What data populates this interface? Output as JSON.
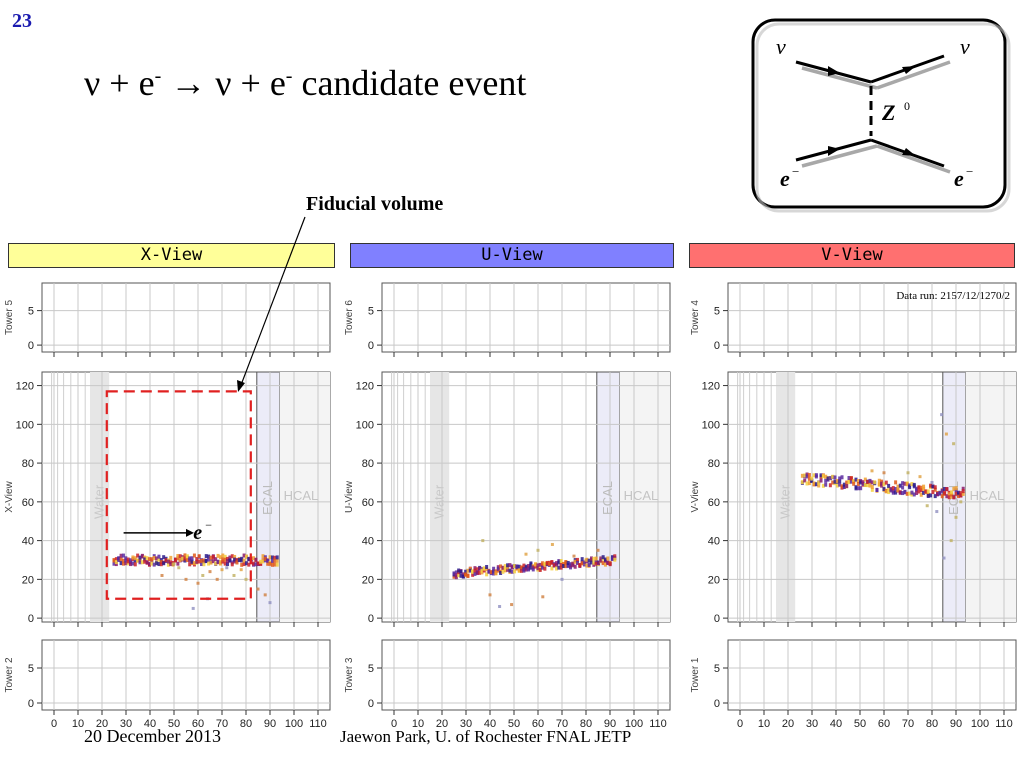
{
  "slide_number": "23",
  "title": {
    "nu1": "ν",
    "plus1": " + e",
    "minus1": "-",
    "arrow": " → ν + e",
    "minus2": "-",
    "rest": " candidate event"
  },
  "fiducial_label": "Fiducial volume",
  "electron_label": "e",
  "feynman": {
    "nu_in": "ν",
    "nu_out": "ν",
    "boson": "Z",
    "boson_sup": "0",
    "e_in": "e",
    "e_out": "e",
    "e_sup": "−"
  },
  "views": [
    {
      "label": "X-View",
      "color": "#ffff99",
      "top_tower": "Tower 5",
      "mid_label": "X-View",
      "bottom_tower": "Tower 2"
    },
    {
      "label": "U-View",
      "color": "#8080ff",
      "top_tower": "Tower 6",
      "mid_label": "U-View",
      "bottom_tower": "Tower 3"
    },
    {
      "label": "V-View",
      "color": "#ff7070",
      "top_tower": "Tower 4",
      "mid_label": "V-View",
      "bottom_tower": "Tower 1"
    }
  ],
  "data_run": "Data run: 2157/12/1270/2",
  "region_labels": {
    "water": "Water",
    "ecal": "ECAL",
    "hcal": "HCAL"
  },
  "footer": {
    "date": "20 December 2013",
    "author": "Jaewon Park, U. of Rochester  FNAL JETP"
  },
  "chart_data": [
    {
      "type": "scatter",
      "title": "X-View",
      "x_ticks": [
        0,
        10,
        20,
        30,
        40,
        50,
        60,
        70,
        80,
        90,
        100,
        110
      ],
      "x_tick_labels": [
        "0",
        "10",
        "20",
        "30",
        "40",
        "50",
        "60",
        "70",
        "80",
        "90",
        "100",
        "110"
      ],
      "y_ticks_main": [
        0,
        20,
        40,
        60,
        80,
        100,
        120
      ],
      "y_ticks_side": [
        0,
        5
      ],
      "xlim": [
        -5,
        115
      ],
      "ylim_main": [
        -2,
        127
      ],
      "ylim_side": [
        -1,
        9
      ],
      "water_region": [
        15,
        23
      ],
      "ecal_region": [
        84.5,
        94
      ],
      "hcal_region": [
        94,
        115
      ],
      "track": {
        "x_start": 25,
        "x_end": 93,
        "y_start": 30,
        "y_end": 30,
        "spread": 2.5
      },
      "fiducial_box": {
        "x": [
          22,
          82
        ],
        "y": [
          10,
          117
        ]
      },
      "scatter_hits": [
        [
          55,
          20
        ],
        [
          60,
          18
        ],
        [
          65,
          24
        ],
        [
          70,
          25
        ],
        [
          75,
          22
        ],
        [
          80,
          20
        ],
        [
          85,
          15
        ],
        [
          90,
          8
        ],
        [
          45,
          22
        ],
        [
          52,
          26
        ],
        [
          62,
          22
        ],
        [
          68,
          20
        ],
        [
          78,
          25
        ],
        [
          88,
          12
        ],
        [
          58,
          5
        ],
        [
          64,
          10
        ],
        [
          50,
          28
        ],
        [
          72,
          26
        ]
      ]
    },
    {
      "type": "scatter",
      "title": "U-View",
      "x_ticks": [
        0,
        10,
        20,
        30,
        40,
        50,
        60,
        70,
        80,
        90,
        100,
        110
      ],
      "x_tick_labels": [
        "0",
        "10",
        "20",
        "30",
        "40",
        "50",
        "60",
        "70",
        "80",
        "90",
        "100",
        "110"
      ],
      "y_ticks_main": [
        0,
        20,
        40,
        60,
        80,
        100,
        120
      ],
      "y_ticks_side": [
        0,
        5
      ],
      "xlim": [
        -5,
        115
      ],
      "ylim_main": [
        -2,
        127
      ],
      "ylim_side": [
        -1,
        9
      ],
      "water_region": [
        15,
        23
      ],
      "ecal_region": [
        84.5,
        94
      ],
      "hcal_region": [
        94,
        115
      ],
      "track": {
        "x_start": 25,
        "x_end": 92,
        "y_start": 23,
        "y_end": 30,
        "spread": 2.0
      },
      "scatter_hits": [
        [
          37,
          40
        ],
        [
          44,
          6
        ],
        [
          49,
          7
        ],
        [
          60,
          35
        ],
        [
          62,
          11
        ],
        [
          70,
          20
        ],
        [
          75,
          32
        ],
        [
          80,
          30
        ],
        [
          66,
          38
        ],
        [
          40,
          12
        ],
        [
          55,
          33
        ],
        [
          85,
          35
        ]
      ]
    },
    {
      "type": "scatter",
      "title": "V-View",
      "x_ticks": [
        0,
        10,
        20,
        30,
        40,
        50,
        60,
        70,
        80,
        90,
        100,
        110
      ],
      "x_tick_labels": [
        "0",
        "10",
        "20",
        "30",
        "40",
        "50",
        "60",
        "70",
        "80",
        "90",
        "100",
        "110"
      ],
      "y_ticks_main": [
        0,
        20,
        40,
        60,
        80,
        100,
        120
      ],
      "y_ticks_side": [
        0,
        5
      ],
      "xlim": [
        -5,
        115
      ],
      "ylim_main": [
        -2,
        127
      ],
      "ylim_side": [
        -1,
        9
      ],
      "water_region": [
        15,
        23
      ],
      "ecal_region": [
        84.5,
        94
      ],
      "hcal_region": [
        94,
        115
      ],
      "track": {
        "x_start": 26,
        "x_end": 93,
        "y_start": 72,
        "y_end": 64,
        "spread": 2.8
      },
      "scatter_hits": [
        [
          84,
          105
        ],
        [
          89,
          90
        ],
        [
          86,
          95
        ],
        [
          78,
          58
        ],
        [
          82,
          55
        ],
        [
          88,
          40
        ],
        [
          85,
          31
        ],
        [
          92,
          60
        ],
        [
          90,
          52
        ],
        [
          70,
          75
        ],
        [
          75,
          73
        ],
        [
          60,
          75
        ],
        [
          55,
          76
        ],
        [
          80,
          70
        ]
      ]
    }
  ]
}
